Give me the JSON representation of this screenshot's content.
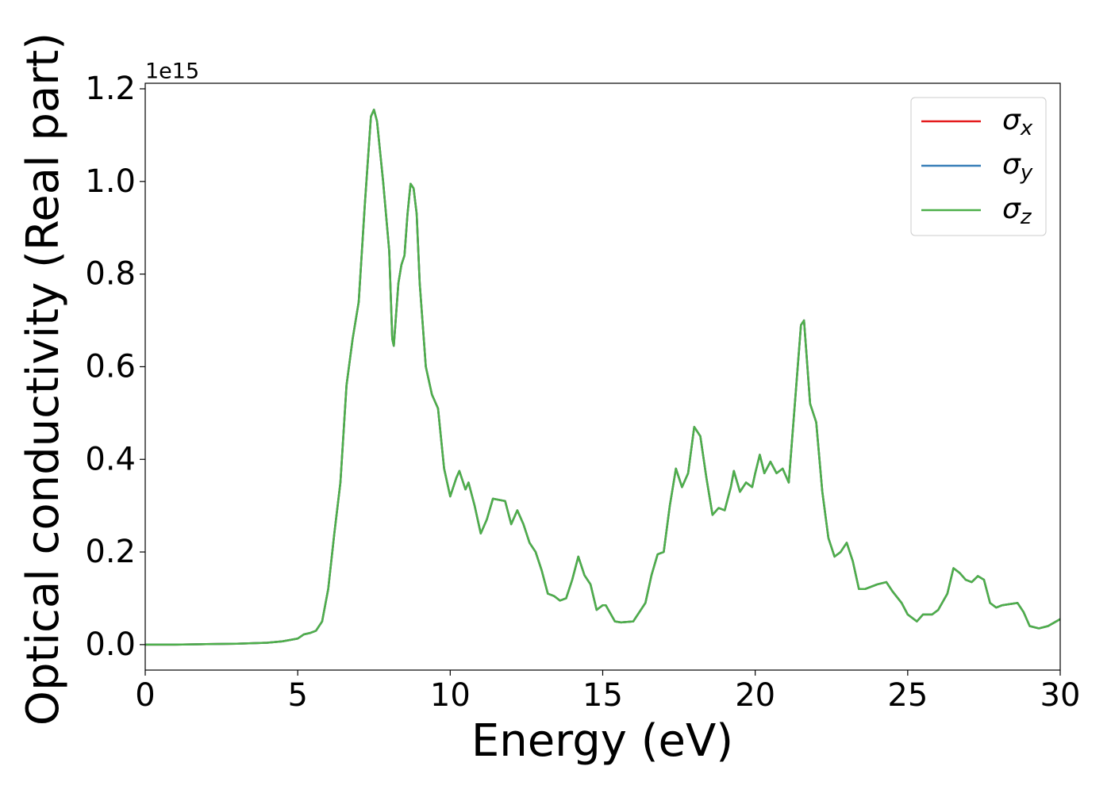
{
  "chart_data": {
    "type": "line",
    "xlabel": "Energy (eV)",
    "ylabel": "Optical conductivity (Real part)",
    "y_offset_label": "1e15",
    "xlim": [
      0,
      30
    ],
    "ylim": [
      -0.055,
      1.212
    ],
    "xticks": [
      0,
      5,
      10,
      15,
      20,
      25,
      30
    ],
    "yticks": [
      {
        "value": 0,
        "label": "0.0"
      },
      0.2,
      0.4,
      0.6,
      0.8,
      {
        "value": 1,
        "label": "1.0"
      },
      1.2
    ],
    "legend": "upper right",
    "x": [
      0,
      1,
      2,
      3,
      4,
      4.5,
      5,
      5.2,
      5.4,
      5.6,
      5.8,
      6,
      6.2,
      6.4,
      6.6,
      6.8,
      7,
      7.2,
      7.4,
      7.5,
      7.6,
      7.8,
      8,
      8.1,
      8.15,
      8.3,
      8.4,
      8.5,
      8.6,
      8.7,
      8.8,
      8.9,
      9,
      9.2,
      9.4,
      9.6,
      9.8,
      10,
      10.2,
      10.3,
      10.5,
      10.6,
      10.8,
      11,
      11.2,
      11.4,
      11.8,
      12,
      12.2,
      12.4,
      12.6,
      12.8,
      13,
      13.2,
      13.4,
      13.6,
      13.8,
      14,
      14.2,
      14.4,
      14.6,
      14.8,
      15,
      15.1,
      15.4,
      15.6,
      16,
      16.4,
      16.6,
      16.8,
      17,
      17.2,
      17.4,
      17.6,
      17.8,
      18,
      18.2,
      18.4,
      18.6,
      18.8,
      19,
      19.2,
      19.3,
      19.5,
      19.7,
      19.9,
      20,
      20.15,
      20.3,
      20.5,
      20.7,
      20.9,
      21.1,
      21.3,
      21.5,
      21.6,
      21.8,
      22,
      22.2,
      22.4,
      22.6,
      22.8,
      23,
      23.2,
      23.4,
      23.6,
      24,
      24.3,
      24.5,
      24.8,
      25,
      25.3,
      25.5,
      25.8,
      26,
      26.3,
      26.5,
      26.7,
      26.9,
      27.1,
      27.3,
      27.5,
      27.7,
      27.9,
      28.1,
      28.4,
      28.6,
      28.8,
      29,
      29.3,
      29.6,
      30
    ],
    "series": [
      {
        "name": "σx",
        "color": "#e41a1c",
        "values": [
          0,
          0,
          0.001,
          0.002,
          0.004,
          0.007,
          0.013,
          0.022,
          0.025,
          0.03,
          0.05,
          0.12,
          0.24,
          0.35,
          0.56,
          0.66,
          0.74,
          0.95,
          1.14,
          1.155,
          1.13,
          1,
          0.85,
          0.66,
          0.645,
          0.78,
          0.82,
          0.84,
          0.93,
          0.995,
          0.985,
          0.93,
          0.78,
          0.6,
          0.54,
          0.51,
          0.38,
          0.32,
          0.36,
          0.375,
          0.335,
          0.35,
          0.3,
          0.24,
          0.27,
          0.315,
          0.31,
          0.26,
          0.29,
          0.26,
          0.22,
          0.2,
          0.16,
          0.11,
          0.105,
          0.095,
          0.1,
          0.14,
          0.19,
          0.15,
          0.13,
          0.075,
          0.085,
          0.085,
          0.05,
          0.048,
          0.05,
          0.09,
          0.15,
          0.195,
          0.2,
          0.3,
          0.38,
          0.34,
          0.37,
          0.47,
          0.45,
          0.36,
          0.28,
          0.295,
          0.29,
          0.34,
          0.375,
          0.33,
          0.35,
          0.34,
          0.37,
          0.41,
          0.37,
          0.395,
          0.37,
          0.38,
          0.35,
          0.52,
          0.69,
          0.7,
          0.52,
          0.48,
          0.33,
          0.23,
          0.19,
          0.2,
          0.22,
          0.18,
          0.12,
          0.12,
          0.13,
          0.135,
          0.115,
          0.09,
          0.065,
          0.05,
          0.065,
          0.065,
          0.075,
          0.11,
          0.165,
          0.155,
          0.14,
          0.135,
          0.148,
          0.14,
          0.09,
          0.08,
          0.085,
          0.088,
          0.09,
          0.07,
          0.04,
          0.035,
          0.04,
          0.055
        ]
      },
      {
        "name": "σy",
        "color": "#377eb8",
        "values": [
          0,
          0,
          0.001,
          0.002,
          0.004,
          0.007,
          0.013,
          0.022,
          0.025,
          0.03,
          0.05,
          0.12,
          0.24,
          0.35,
          0.56,
          0.66,
          0.74,
          0.95,
          1.14,
          1.155,
          1.13,
          1,
          0.85,
          0.66,
          0.645,
          0.78,
          0.82,
          0.84,
          0.93,
          0.995,
          0.985,
          0.93,
          0.78,
          0.6,
          0.54,
          0.51,
          0.38,
          0.32,
          0.36,
          0.375,
          0.335,
          0.35,
          0.3,
          0.24,
          0.27,
          0.315,
          0.31,
          0.26,
          0.29,
          0.26,
          0.22,
          0.2,
          0.16,
          0.11,
          0.105,
          0.095,
          0.1,
          0.14,
          0.19,
          0.15,
          0.13,
          0.075,
          0.085,
          0.085,
          0.05,
          0.048,
          0.05,
          0.09,
          0.15,
          0.195,
          0.2,
          0.3,
          0.38,
          0.34,
          0.37,
          0.47,
          0.45,
          0.36,
          0.28,
          0.295,
          0.29,
          0.34,
          0.375,
          0.33,
          0.35,
          0.34,
          0.37,
          0.41,
          0.37,
          0.395,
          0.37,
          0.38,
          0.35,
          0.52,
          0.69,
          0.7,
          0.52,
          0.48,
          0.33,
          0.23,
          0.19,
          0.2,
          0.22,
          0.18,
          0.12,
          0.12,
          0.13,
          0.135,
          0.115,
          0.09,
          0.065,
          0.05,
          0.065,
          0.065,
          0.075,
          0.11,
          0.165,
          0.155,
          0.14,
          0.135,
          0.148,
          0.14,
          0.09,
          0.08,
          0.085,
          0.088,
          0.09,
          0.07,
          0.04,
          0.035,
          0.04,
          0.055
        ]
      },
      {
        "name": "σz",
        "color": "#4daf4a",
        "values": [
          0,
          0,
          0.001,
          0.002,
          0.004,
          0.007,
          0.013,
          0.022,
          0.025,
          0.03,
          0.05,
          0.12,
          0.24,
          0.35,
          0.56,
          0.66,
          0.74,
          0.95,
          1.14,
          1.155,
          1.13,
          1,
          0.85,
          0.66,
          0.645,
          0.78,
          0.82,
          0.84,
          0.93,
          0.995,
          0.985,
          0.93,
          0.78,
          0.6,
          0.54,
          0.51,
          0.38,
          0.32,
          0.36,
          0.375,
          0.335,
          0.35,
          0.3,
          0.24,
          0.27,
          0.315,
          0.31,
          0.26,
          0.29,
          0.26,
          0.22,
          0.2,
          0.16,
          0.11,
          0.105,
          0.095,
          0.1,
          0.14,
          0.19,
          0.15,
          0.13,
          0.075,
          0.085,
          0.085,
          0.05,
          0.048,
          0.05,
          0.09,
          0.15,
          0.195,
          0.2,
          0.3,
          0.38,
          0.34,
          0.37,
          0.47,
          0.45,
          0.36,
          0.28,
          0.295,
          0.29,
          0.34,
          0.375,
          0.33,
          0.35,
          0.34,
          0.37,
          0.41,
          0.37,
          0.395,
          0.37,
          0.38,
          0.35,
          0.52,
          0.69,
          0.7,
          0.52,
          0.48,
          0.33,
          0.23,
          0.19,
          0.2,
          0.22,
          0.18,
          0.12,
          0.12,
          0.13,
          0.135,
          0.115,
          0.09,
          0.065,
          0.05,
          0.065,
          0.065,
          0.075,
          0.11,
          0.165,
          0.155,
          0.14,
          0.135,
          0.148,
          0.14,
          0.09,
          0.08,
          0.085,
          0.088,
          0.09,
          0.07,
          0.04,
          0.035,
          0.04,
          0.055
        ]
      }
    ]
  }
}
